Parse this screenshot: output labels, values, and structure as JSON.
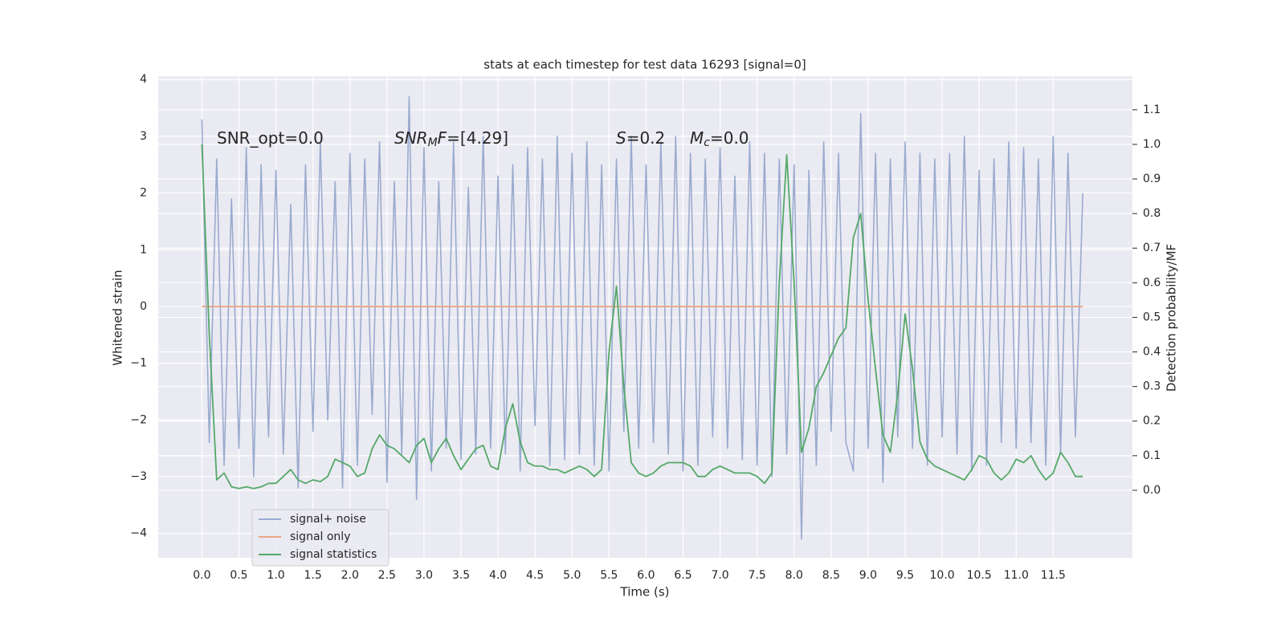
{
  "chart_data": {
    "type": "line",
    "title": "stats at each timestep for test data 16293 [signal=0]",
    "xlabel": "Time (s)",
    "ylabel": "Whitened strain",
    "y2label": "Detection probability/MF",
    "grid": true,
    "legend": "lower left",
    "xlim": [
      -0.59,
      12.57
    ],
    "ylim": [
      -4.43,
      4.06
    ],
    "y2lim": [
      -0.195,
      1.197
    ],
    "xticks": [
      {
        "value": 0,
        "label": "0.0"
      },
      0.5,
      {
        "value": 1,
        "label": "1.0"
      },
      1.5,
      {
        "value": 2,
        "label": "2.0"
      },
      2.5,
      {
        "value": 3,
        "label": "3.0"
      },
      3.5,
      {
        "value": 4,
        "label": "4.0"
      },
      4.5,
      {
        "value": 5,
        "label": "5.0"
      },
      5.5,
      {
        "value": 6,
        "label": "6.0"
      },
      6.5,
      {
        "value": 7,
        "label": "7.0"
      },
      7.5,
      {
        "value": 8,
        "label": "8.0"
      },
      8.5,
      {
        "value": 9,
        "label": "9.0"
      },
      9.5,
      {
        "value": 10,
        "label": "10.0"
      },
      10.5,
      {
        "value": 11,
        "label": "11.0"
      },
      11.5
    ],
    "yticks": [
      {
        "value": -4,
        "label": "−4"
      },
      {
        "value": -3,
        "label": "−3"
      },
      {
        "value": -2,
        "label": "−2"
      },
      {
        "value": -1,
        "label": "−1"
      },
      0,
      1,
      2,
      3,
      4
    ],
    "y2ticks": [
      {
        "value": 0,
        "label": "0.0"
      },
      0.1,
      0.2,
      0.3,
      0.4,
      0.5,
      0.6,
      0.7,
      0.8,
      0.9,
      {
        "value": 1,
        "label": "1.0"
      },
      1.1
    ],
    "x": [
      0,
      0.1,
      0.2,
      0.3,
      0.4,
      0.5,
      0.6,
      0.7,
      0.8,
      0.9,
      1,
      1.1,
      1.2,
      1.3,
      1.4,
      1.5,
      1.6,
      1.7,
      1.8,
      1.9,
      2,
      2.1,
      2.2,
      2.3,
      2.4,
      2.5,
      2.6,
      2.7,
      2.8,
      2.9,
      3,
      3.1,
      3.2,
      3.3,
      3.4,
      3.5,
      3.6,
      3.7,
      3.8,
      3.9,
      4,
      4.1,
      4.2,
      4.3,
      4.4,
      4.5,
      4.6,
      4.7,
      4.8,
      4.9,
      5,
      5.1,
      5.2,
      5.3,
      5.4,
      5.5,
      5.6,
      5.7,
      5.8,
      5.9,
      6,
      6.1,
      6.2,
      6.3,
      6.4,
      6.5,
      6.6,
      6.7,
      6.8,
      6.9,
      7,
      7.1,
      7.2,
      7.3,
      7.4,
      7.5,
      7.6,
      7.7,
      7.8,
      7.9,
      8,
      8.1,
      8.2,
      8.3,
      8.4,
      8.5,
      8.6,
      8.7,
      8.8,
      8.9,
      9,
      9.1,
      9.2,
      9.3,
      9.4,
      9.5,
      9.6,
      9.7,
      9.8,
      9.9,
      10,
      10.1,
      10.2,
      10.3,
      10.4,
      10.5,
      10.6,
      10.7,
      10.8,
      10.9,
      11,
      11.1,
      11.2,
      11.3,
      11.4,
      11.5,
      11.6,
      11.7,
      11.8,
      11.9
    ],
    "series": [
      {
        "name": "signal+ noise",
        "color": "#9aabcf",
        "values": [
          3.3,
          -2.4,
          2.6,
          -2.8,
          1.9,
          -2.5,
          2.8,
          -3.0,
          2.5,
          -2.3,
          2.4,
          -2.6,
          1.8,
          -3.2,
          2.5,
          -2.2,
          2.9,
          -2.0,
          2.2,
          -3.2,
          2.7,
          -2.8,
          2.6,
          -1.9,
          2.9,
          -3.1,
          2.2,
          -2.6,
          3.7,
          -3.4,
          2.8,
          -2.9,
          2.2,
          -2.5,
          2.9,
          -2.7,
          2.1,
          -2.6,
          3.0,
          -2.5,
          2.3,
          -2.6,
          2.5,
          -2.9,
          2.8,
          -2.1,
          2.6,
          -2.8,
          3.0,
          -2.7,
          2.7,
          -2.6,
          2.9,
          -2.8,
          2.5,
          -2.9,
          2.6,
          -2.2,
          3.0,
          -2.5,
          2.5,
          -2.4,
          2.9,
          -2.6,
          3.0,
          -2.9,
          2.7,
          -2.8,
          2.6,
          -2.3,
          2.8,
          -2.5,
          2.3,
          -2.7,
          2.9,
          -2.8,
          2.7,
          -3.0,
          2.6,
          -2.6,
          2.5,
          -4.1,
          2.4,
          -2.8,
          2.9,
          -2.2,
          2.7,
          -2.4,
          -2.9,
          3.4,
          -2.5,
          2.7,
          -3.1,
          2.6,
          -2.3,
          2.9,
          -2.5,
          2.7,
          -2.8,
          2.6,
          -2.3,
          2.7,
          -2.6,
          3.0,
          -2.9,
          2.4,
          -2.8,
          2.6,
          -2.4,
          2.9,
          -2.5,
          2.8,
          -2.4,
          2.6,
          -2.8,
          3.0,
          -2.6,
          2.7,
          -2.3,
          2.0
        ]
      },
      {
        "name": "signal only",
        "color": "#e8a788",
        "values": [
          0,
          0,
          0,
          0,
          0,
          0,
          0,
          0,
          0,
          0,
          0,
          0,
          0,
          0,
          0,
          0,
          0,
          0,
          0,
          0,
          0,
          0,
          0,
          0,
          0,
          0,
          0,
          0,
          0,
          0,
          0,
          0,
          0,
          0,
          0,
          0,
          0,
          0,
          0,
          0,
          0,
          0,
          0,
          0,
          0,
          0,
          0,
          0,
          0,
          0,
          0,
          0,
          0,
          0,
          0,
          0,
          0,
          0,
          0,
          0,
          0,
          0,
          0,
          0,
          0,
          0,
          0,
          0,
          0,
          0,
          0,
          0,
          0,
          0,
          0,
          0,
          0,
          0,
          0,
          0,
          0,
          0,
          0,
          0,
          0,
          0,
          0,
          0,
          0,
          0,
          0,
          0,
          0,
          0,
          0,
          0,
          0,
          0,
          0,
          0,
          0,
          0,
          0,
          0,
          0,
          0,
          0,
          0,
          0,
          0,
          0,
          0,
          0,
          0,
          0,
          0,
          0,
          0,
          0,
          0
        ]
      },
      {
        "name": "signal statistics",
        "color": "#55a868",
        "axis": "y2",
        "values": [
          1.0,
          0.45,
          0.03,
          0.05,
          0.01,
          0.005,
          0.01,
          0.005,
          0.01,
          0.02,
          0.02,
          0.04,
          0.06,
          0.03,
          0.02,
          0.03,
          0.025,
          0.04,
          0.09,
          0.08,
          0.07,
          0.04,
          0.05,
          0.12,
          0.16,
          0.13,
          0.12,
          0.1,
          0.08,
          0.13,
          0.15,
          0.08,
          0.12,
          0.15,
          0.1,
          0.06,
          0.09,
          0.12,
          0.13,
          0.07,
          0.06,
          0.18,
          0.25,
          0.14,
          0.08,
          0.07,
          0.07,
          0.06,
          0.06,
          0.05,
          0.06,
          0.07,
          0.06,
          0.04,
          0.06,
          0.4,
          0.59,
          0.3,
          0.08,
          0.05,
          0.04,
          0.05,
          0.07,
          0.08,
          0.08,
          0.08,
          0.07,
          0.04,
          0.04,
          0.06,
          0.07,
          0.06,
          0.05,
          0.05,
          0.05,
          0.04,
          0.02,
          0.05,
          0.6,
          0.97,
          0.6,
          0.11,
          0.18,
          0.3,
          0.34,
          0.39,
          0.44,
          0.47,
          0.73,
          0.8,
          0.55,
          0.35,
          0.16,
          0.11,
          0.28,
          0.51,
          0.35,
          0.14,
          0.09,
          0.07,
          0.06,
          0.05,
          0.04,
          0.03,
          0.06,
          0.1,
          0.09,
          0.05,
          0.03,
          0.05,
          0.09,
          0.08,
          0.1,
          0.06,
          0.03,
          0.05,
          0.11,
          0.08,
          0.04,
          0.04
        ]
      }
    ],
    "annotations": [
      {
        "parts": [
          {
            "text": "SNR_opt=0.0"
          }
        ]
      },
      {
        "parts": [
          {
            "text": "SNR",
            "italic": true
          },
          {
            "text": "M",
            "italic": true,
            "sub": true
          },
          {
            "text": "F",
            "italic": true
          },
          {
            "text": "=[4.29]"
          }
        ]
      },
      {
        "parts": [
          {
            "text": "S",
            "italic": true
          },
          {
            "text": "=0.2"
          }
        ]
      },
      {
        "parts": [
          {
            "text": "M",
            "italic": true
          },
          {
            "text": "c",
            "italic": true,
            "sub": true
          },
          {
            "text": "=0.0"
          }
        ]
      }
    ]
  }
}
